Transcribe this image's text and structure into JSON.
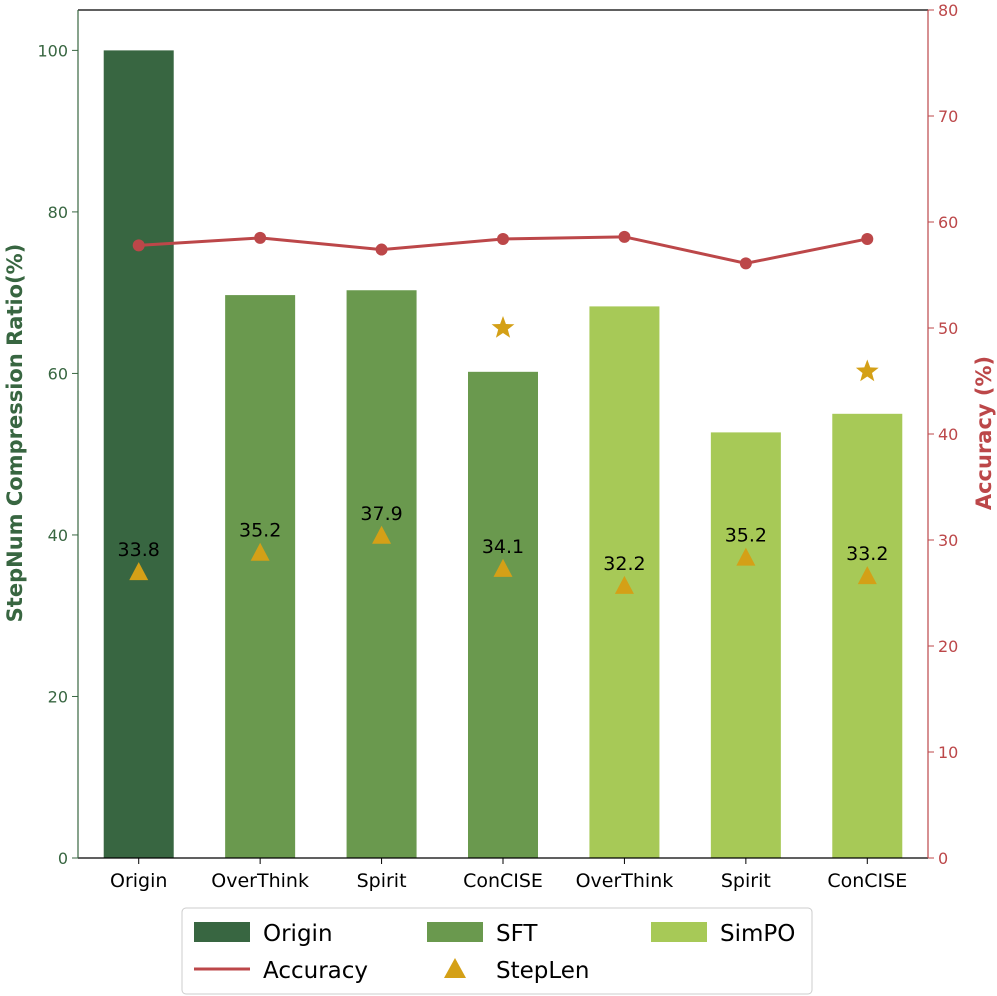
{
  "colors": {
    "origin": "#386641",
    "sft": "#6a994e",
    "simpo": "#a7c957",
    "accuracy": "#bc4749",
    "steplen": "#d4a017",
    "axis": "#000000"
  },
  "chart_data": {
    "type": "bar",
    "categories": [
      "Origin",
      "OverThink",
      "Spirit",
      "ConCISE",
      "OverThink",
      "Spirit",
      "ConCISE"
    ],
    "groups": [
      "Origin",
      "SFT",
      "SFT",
      "SFT",
      "SimPO",
      "SimPO",
      "SimPO"
    ],
    "values": [
      100,
      69.7,
      70.3,
      60.2,
      68.3,
      52.7,
      55.0
    ],
    "accuracy": [
      57.8,
      58.5,
      57.4,
      58.4,
      58.6,
      56.1,
      58.4
    ],
    "steplen_marker": [
      35.4,
      37.8,
      39.9,
      35.8,
      33.7,
      37.2,
      34.9
    ],
    "steplen_labels": [
      "33.8",
      "35.2",
      "37.9",
      "34.1",
      "32.2",
      "35.2",
      "33.2"
    ],
    "stars": [
      {
        "category_index": 3,
        "accuracy_value": 50.0
      },
      {
        "category_index": 6,
        "accuracy_value": 45.9
      }
    ],
    "ylabel": "StepNum Compression Ratio(%)",
    "y2label": "Accuracy (%)",
    "ylim": [
      0,
      105
    ],
    "y2lim": [
      0,
      80
    ],
    "yticks": [
      0,
      20,
      40,
      60,
      80,
      100
    ],
    "y2ticks": [
      0,
      10,
      20,
      30,
      40,
      50,
      60,
      70,
      80
    ],
    "legend": {
      "placement": "bottom-center",
      "entries": [
        {
          "key": "origin",
          "label": "Origin",
          "kind": "bar"
        },
        {
          "key": "sft",
          "label": "SFT",
          "kind": "bar"
        },
        {
          "key": "simpo",
          "label": "SimPO",
          "kind": "bar"
        },
        {
          "key": "accuracy",
          "label": "Accuracy",
          "kind": "line"
        },
        {
          "key": "steplen",
          "label": "StepLen",
          "kind": "triangle"
        }
      ]
    }
  }
}
